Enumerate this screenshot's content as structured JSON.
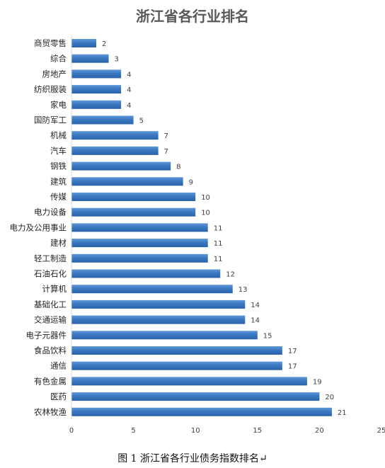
{
  "chart_data": {
    "type": "bar",
    "orientation": "horizontal",
    "title": "浙江省各行业排名",
    "categories": [
      "商贸零售",
      "综合",
      "房地产",
      "纺织服装",
      "家电",
      "国防军工",
      "机械",
      "汽车",
      "钢铁",
      "建筑",
      "传媒",
      "电力设备",
      "电力及公用事业",
      "建材",
      "轻工制造",
      "石油石化",
      "计算机",
      "基础化工",
      "交通运输",
      "电子元器件",
      "食品饮料",
      "通信",
      "有色金属",
      "医药",
      "农林牧渔"
    ],
    "values": [
      2,
      3,
      4,
      4,
      4,
      5,
      7,
      7,
      8,
      9,
      10,
      10,
      11,
      11,
      11,
      12,
      13,
      14,
      14,
      15,
      17,
      17,
      19,
      20,
      21
    ],
    "xlim": [
      0,
      25
    ],
    "xticks": [
      0,
      5,
      10,
      15,
      20,
      25
    ],
    "xlabel": "",
    "ylabel": "",
    "grid": false,
    "legend": "none",
    "bar_color": "#3a78c2",
    "data_labels": true
  },
  "caption": "图 1 浙江省各行业债务指数排名↵"
}
